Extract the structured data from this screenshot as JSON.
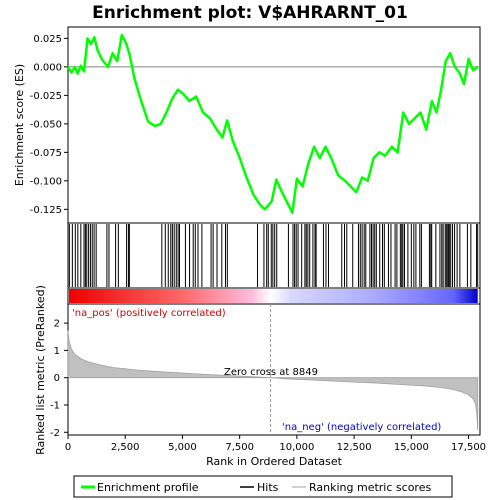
{
  "title": "Enrichment plot: V$AHRARNT_01",
  "colors": {
    "es_line": "#00ff00",
    "hits": "#000000",
    "metric_fill": "#c0c0c0",
    "pos_band": "#ff0000",
    "neg_band": "#0000ff",
    "pos_text": "#cc0000",
    "neg_text": "#0000cc",
    "zero_cross": "#999999"
  },
  "legend": {
    "es": "Enrichment profile",
    "hits": "Hits",
    "metric": "Ranking metric scores"
  },
  "annotations": {
    "pos": "'na_pos' (positively correlated)",
    "neg": "'na_neg' (negatively correlated)",
    "zero_cross": "Zero cross at 8849"
  },
  "chart_data": {
    "type": "line",
    "title": "Enrichment plot: V$AHRARNT_01",
    "xlabel": "Rank in Ordered Dataset",
    "top_ylabel": "Enrichment score (ES)",
    "bottom_ylabel": "Ranked list metric (PreRanked)",
    "xlim": [
      0,
      18000
    ],
    "top_ylim": [
      -0.137,
      0.035
    ],
    "bottom_ylim": [
      -2.1,
      2.7
    ],
    "x_ticks": [
      0,
      2500,
      5000,
      7500,
      10000,
      12500,
      15000,
      17500
    ],
    "x_tick_labels": [
      "0",
      "2,500",
      "5,000",
      "7,500",
      "10,000",
      "12,500",
      "15,000",
      "17,500"
    ],
    "top_y_ticks": [
      0.025,
      0,
      -0.025,
      -0.05,
      -0.075,
      -0.1,
      -0.125
    ],
    "top_y_tick_labels": [
      "0.025",
      "0.000",
      "-0.025",
      "-0.050",
      "-0.075",
      "-0.100",
      "-0.125"
    ],
    "bottom_y_ticks": [
      2,
      1,
      0,
      -1,
      -2
    ],
    "bottom_y_tick_labels": [
      "2",
      "1",
      "0",
      "-1",
      "-2"
    ],
    "zero_cross": 8849,
    "n_genes": 17900,
    "es_series": {
      "name": "Enrichment profile",
      "x": [
        0,
        150,
        300,
        420,
        560,
        700,
        850,
        1000,
        1150,
        1300,
        1500,
        1750,
        1950,
        2150,
        2350,
        2550,
        2700,
        2900,
        3200,
        3500,
        3800,
        4050,
        4300,
        4550,
        4800,
        5050,
        5300,
        5600,
        5900,
        6200,
        6500,
        6750,
        6950,
        7200,
        7500,
        7800,
        8100,
        8350,
        8600,
        8900,
        9100,
        9350,
        9600,
        9800,
        10000,
        10250,
        10500,
        10750,
        11000,
        11250,
        11500,
        11800,
        12100,
        12350,
        12600,
        12850,
        13100,
        13350,
        13600,
        13850,
        14150,
        14400,
        14650,
        14900,
        15150,
        15400,
        15650,
        15900,
        16100,
        16300,
        16500,
        16700,
        16900,
        17100,
        17300,
        17500,
        17700,
        17900
      ],
      "y": [
        0.0,
        -0.005,
        0.0,
        -0.006,
        0.001,
        -0.004,
        0.025,
        0.02,
        0.026,
        0.014,
        0.006,
        0.0,
        0.012,
        0.005,
        0.028,
        0.02,
        0.01,
        -0.01,
        -0.03,
        -0.048,
        -0.052,
        -0.05,
        -0.04,
        -0.028,
        -0.02,
        -0.024,
        -0.03,
        -0.026,
        -0.04,
        -0.045,
        -0.055,
        -0.062,
        -0.047,
        -0.065,
        -0.08,
        -0.097,
        -0.112,
        -0.12,
        -0.125,
        -0.118,
        -0.099,
        -0.11,
        -0.12,
        -0.128,
        -0.098,
        -0.105,
        -0.085,
        -0.07,
        -0.08,
        -0.07,
        -0.08,
        -0.095,
        -0.1,
        -0.105,
        -0.11,
        -0.097,
        -0.1,
        -0.08,
        -0.075,
        -0.078,
        -0.07,
        -0.075,
        -0.04,
        -0.05,
        -0.045,
        -0.04,
        -0.055,
        -0.03,
        -0.04,
        -0.02,
        0.005,
        0.012,
        0.0,
        -0.005,
        -0.015,
        0.007,
        -0.003,
        0.0
      ]
    },
    "hits": [
      60,
      190,
      320,
      430,
      560,
      700,
      760,
      820,
      900,
      980,
      1060,
      1140,
      1230,
      1700,
      1790,
      2080,
      2200,
      2560,
      2640,
      2680,
      4100,
      4250,
      4380,
      4490,
      4560,
      4640,
      4730,
      4810,
      4870,
      5130,
      5310,
      5470,
      5560,
      5680,
      5850,
      6250,
      6340,
      6510,
      6720,
      6880,
      6960,
      8280,
      8560,
      8680,
      8750,
      8880,
      8950,
      9030,
      9120,
      9630,
      9830,
      9900,
      9970,
      10050,
      10210,
      10350,
      10410,
      10480,
      10560,
      10700,
      10790,
      10840,
      11160,
      11270,
      11380,
      11960,
      12080,
      12180,
      12440,
      12690,
      12770,
      12850,
      12940,
      13010,
      13190,
      13260,
      13330,
      13400,
      13470,
      13620,
      13740,
      13820,
      14000,
      14110,
      14290,
      14370,
      14520,
      14580,
      14630,
      14700,
      14850,
      15000,
      15110,
      15200,
      15370,
      15440,
      15790,
      15850,
      15890,
      16070,
      16250,
      16330,
      16390,
      16480,
      16530,
      16590,
      16630,
      16660,
      16720,
      16800,
      16890,
      17000,
      17120,
      17450,
      17600,
      17850,
      17900
    ],
    "metric_series": {
      "name": "Ranking metric scores",
      "x": [
        0,
        50,
        150,
        300,
        600,
        1000,
        1500,
        2000,
        3000,
        4000,
        5000,
        6000,
        7000,
        8000,
        8849,
        9500,
        10500,
        11500,
        12500,
        13500,
        14500,
        15500,
        16300,
        16800,
        17200,
        17500,
        17700,
        17800,
        17860,
        17900
      ],
      "y": [
        1.72,
        1.35,
        1.05,
        0.85,
        0.68,
        0.55,
        0.45,
        0.37,
        0.28,
        0.22,
        0.17,
        0.12,
        0.08,
        0.04,
        0.0,
        -0.04,
        -0.08,
        -0.12,
        -0.16,
        -0.2,
        -0.25,
        -0.3,
        -0.36,
        -0.43,
        -0.52,
        -0.63,
        -0.78,
        -0.95,
        -1.3,
        -1.92
      ]
    }
  }
}
